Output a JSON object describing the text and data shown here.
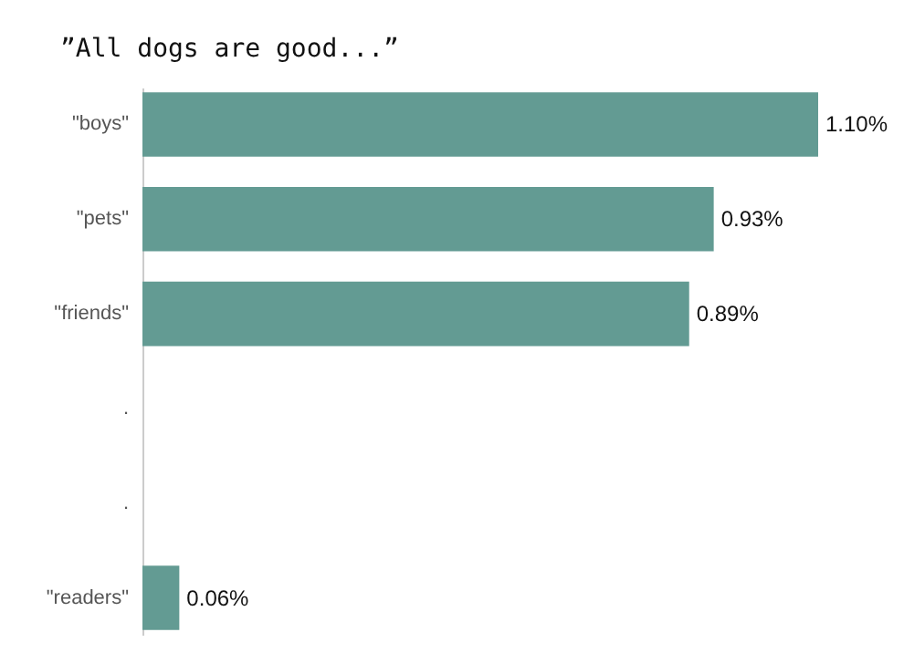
{
  "chart_data": {
    "type": "bar",
    "orientation": "horizontal",
    "title": "”All dogs are good...”",
    "categories": [
      "\"boys\"",
      "\"pets\"",
      "\"friends\"",
      ".",
      ".",
      "\"readers\""
    ],
    "values": [
      1.1,
      0.93,
      0.89,
      null,
      null,
      0.06
    ],
    "value_labels": [
      "1.10%",
      "0.93%",
      "0.89%",
      null,
      null,
      "0.06%"
    ],
    "color": "#639b93"
  }
}
